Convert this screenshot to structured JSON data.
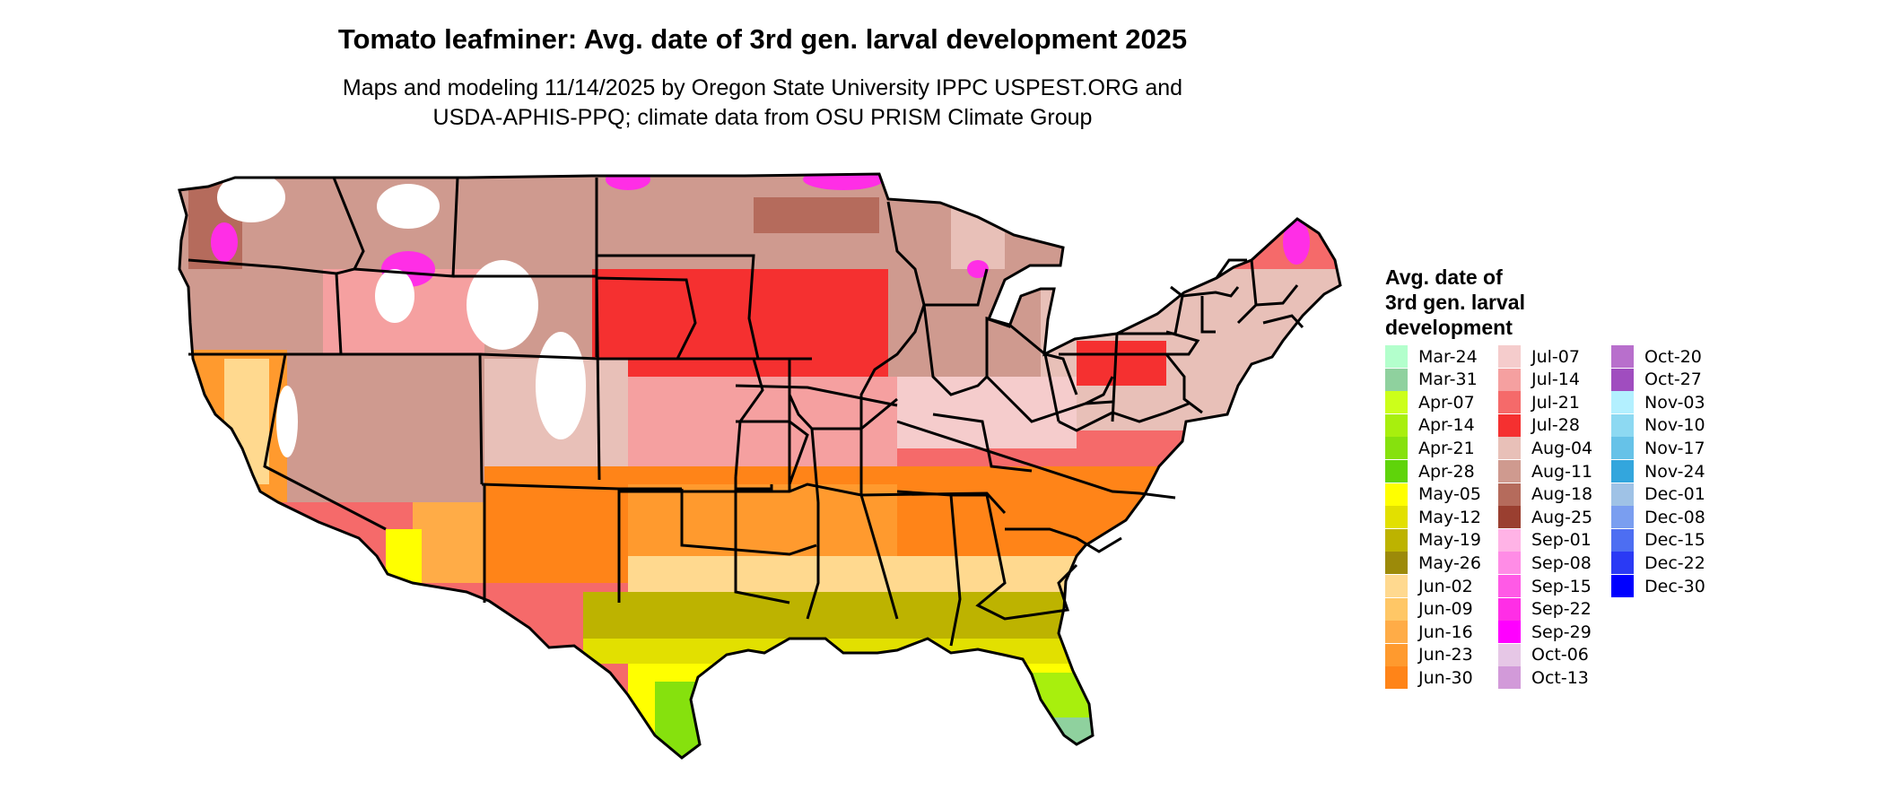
{
  "title": "Tomato leafminer: Avg. date of 3rd gen. larval development 2025",
  "subtitle_lines": [
    "Maps and modeling 11/14/2025 by Oregon State University IPPC USPEST.ORG and",
    "USDA-APHIS-PPQ; climate data from OSU PRISM Climate Group"
  ],
  "legend": {
    "title_lines": [
      "Avg. date of",
      "3rd gen. larval",
      "development"
    ],
    "items": [
      {
        "label": "Mar-24",
        "color": "#b3ffcc"
      },
      {
        "label": "Mar-31",
        "color": "#8fd19e"
      },
      {
        "label": "Apr-07",
        "color": "#ccff1a"
      },
      {
        "label": "Apr-14",
        "color": "#a8ef0d"
      },
      {
        "label": "Apr-21",
        "color": "#86e10d"
      },
      {
        "label": "Apr-28",
        "color": "#5fd40a"
      },
      {
        "label": "May-05",
        "color": "#ffff00"
      },
      {
        "label": "May-12",
        "color": "#e2e000"
      },
      {
        "label": "May-19",
        "color": "#bdb300"
      },
      {
        "label": "May-26",
        "color": "#9c8a09"
      },
      {
        "label": "Jun-02",
        "color": "#ffd98f"
      },
      {
        "label": "Jun-09",
        "color": "#ffc766"
      },
      {
        "label": "Jun-16",
        "color": "#ffac47"
      },
      {
        "label": "Jun-23",
        "color": "#ff9a2e"
      },
      {
        "label": "Jun-30",
        "color": "#ff8418"
      },
      {
        "label": "Jul-07",
        "color": "#f5cccc"
      },
      {
        "label": "Jul-14",
        "color": "#f5a0a0"
      },
      {
        "label": "Jul-21",
        "color": "#f56a6a"
      },
      {
        "label": "Jul-28",
        "color": "#f53030"
      },
      {
        "label": "Aug-04",
        "color": "#e8c0b8"
      },
      {
        "label": "Aug-11",
        "color": "#cf9a8f"
      },
      {
        "label": "Aug-18",
        "color": "#b56b5c"
      },
      {
        "label": "Aug-25",
        "color": "#9a3f30"
      },
      {
        "label": "Sep-01",
        "color": "#ffb3e6"
      },
      {
        "label": "Sep-08",
        "color": "#ff8ce6"
      },
      {
        "label": "Sep-15",
        "color": "#ff5ae6"
      },
      {
        "label": "Sep-22",
        "color": "#ff2ee6"
      },
      {
        "label": "Sep-29",
        "color": "#ff00ff"
      },
      {
        "label": "Oct-06",
        "color": "#e6c7e6"
      },
      {
        "label": "Oct-13",
        "color": "#d29ad9"
      },
      {
        "label": "Oct-20",
        "color": "#b86fcc"
      },
      {
        "label": "Oct-27",
        "color": "#a04dbf"
      },
      {
        "label": "Nov-03",
        "color": "#b3f0ff"
      },
      {
        "label": "Nov-10",
        "color": "#8dd9f2"
      },
      {
        "label": "Nov-17",
        "color": "#66c2e8"
      },
      {
        "label": "Nov-24",
        "color": "#33a6dd"
      },
      {
        "label": "Dec-01",
        "color": "#9fc2e6"
      },
      {
        "label": "Dec-08",
        "color": "#7a9ef0"
      },
      {
        "label": "Dec-15",
        "color": "#4d6ef2"
      },
      {
        "label": "Dec-22",
        "color": "#2a3af5"
      },
      {
        "label": "Dec-30",
        "color": "#0000ff"
      }
    ]
  },
  "map_colors": {
    "Mar-31": "#8fd19e",
    "Apr-21": "#86e10d",
    "Apr-14": "#a8ef0d",
    "May-05": "#ffff00",
    "May-12": "#e2e000",
    "May-19": "#bdb300",
    "Jun-02": "#ffd98f",
    "Jun-16": "#ffac47",
    "Jun-23": "#ff9a2e",
    "Jun-30": "#ff8418",
    "Jul-07": "#f5cccc",
    "Jul-14": "#f5a0a0",
    "Jul-21": "#f56a6a",
    "Jul-28": "#f53030",
    "Aug-04": "#e8c0b8",
    "Aug-11": "#cf9a8f",
    "Aug-18": "#b56b5c",
    "Sep-22": "#ff2ee6",
    "none": "#ffffff"
  }
}
